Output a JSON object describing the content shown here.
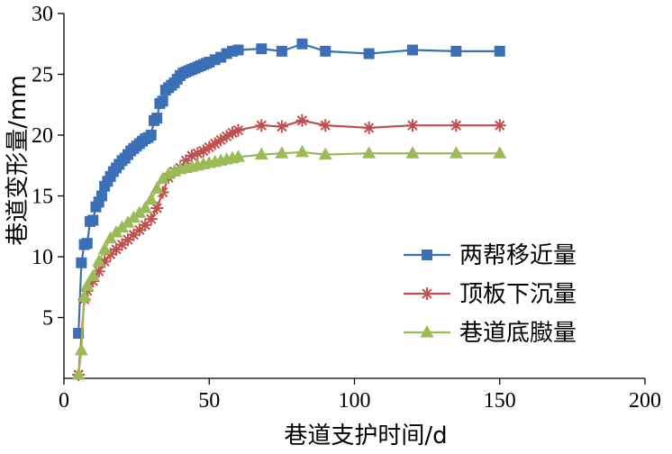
{
  "chart_data": {
    "type": "line",
    "xlabel": "巷道支护时间/d",
    "ylabel": "巷道变形量/mm",
    "xlim": [
      0,
      200
    ],
    "ylim": [
      0,
      30
    ],
    "xticks": [
      0,
      50,
      100,
      150,
      200
    ],
    "yticks": [
      5,
      10,
      15,
      20,
      25,
      30
    ],
    "ytick_labels": [
      "5",
      "10",
      "15",
      "20",
      "25",
      "30"
    ],
    "grid": false,
    "legend_position": "lower-right",
    "series": [
      {
        "name": "两帮移近量",
        "color": "#3b6fb6",
        "marker": "square",
        "x": [
          5,
          6,
          7,
          8,
          9,
          10,
          11,
          12,
          13,
          14,
          15,
          16,
          17,
          18,
          19,
          20,
          21,
          22,
          23,
          24,
          25,
          26,
          27,
          28,
          29,
          30,
          31,
          32,
          33,
          34,
          35,
          36,
          37,
          38,
          39,
          40,
          41,
          42,
          43,
          44,
          45,
          46,
          47,
          48,
          49,
          50,
          52,
          54,
          56,
          58,
          60,
          68,
          75,
          82,
          90,
          105,
          120,
          135,
          150
        ],
        "y": [
          3.7,
          9.5,
          11.0,
          11.1,
          12.9,
          13.0,
          14.1,
          14.5,
          15.0,
          15.8,
          16.2,
          16.6,
          17.0,
          17.3,
          17.6,
          17.9,
          18.1,
          18.4,
          18.7,
          18.9,
          19.1,
          19.3,
          19.5,
          19.7,
          19.8,
          20.0,
          21.2,
          21.4,
          22.6,
          22.8,
          23.7,
          23.9,
          24.1,
          24.3,
          24.6,
          24.9,
          25.1,
          25.2,
          25.3,
          25.4,
          25.5,
          25.6,
          25.7,
          25.8,
          25.9,
          26.0,
          26.2,
          26.4,
          26.7,
          26.9,
          27.0,
          27.1,
          26.9,
          27.5,
          26.9,
          26.7,
          27.0,
          26.9,
          26.9
        ]
      },
      {
        "name": "顶板下沉量",
        "color": "#c0504d",
        "marker": "star",
        "x": [
          5,
          7,
          8,
          10,
          12,
          14,
          16,
          18,
          20,
          22,
          24,
          26,
          28,
          30,
          32,
          34,
          36,
          38,
          40,
          42,
          44,
          46,
          48,
          50,
          52,
          54,
          56,
          58,
          60,
          68,
          75,
          82,
          90,
          105,
          120,
          135,
          150
        ],
        "y": [
          0.3,
          6.5,
          7.2,
          8.0,
          8.8,
          9.6,
          10.2,
          10.6,
          11.0,
          11.4,
          11.8,
          12.2,
          12.6,
          13.1,
          14.0,
          15.3,
          16.5,
          17.0,
          17.3,
          17.9,
          18.3,
          18.5,
          18.7,
          19.0,
          19.3,
          19.6,
          19.9,
          20.2,
          20.4,
          20.8,
          20.7,
          21.2,
          20.8,
          20.6,
          20.8,
          20.8,
          20.8
        ]
      },
      {
        "name": "巷道底臌量",
        "color": "#9bbb59",
        "marker": "triangle",
        "x": [
          5,
          6,
          7,
          8,
          10,
          12,
          14,
          16,
          18,
          20,
          22,
          24,
          26,
          28,
          30,
          32,
          34,
          36,
          38,
          40,
          42,
          44,
          46,
          48,
          50,
          52,
          54,
          56,
          58,
          60,
          68,
          75,
          82,
          90,
          105,
          120,
          135,
          150
        ],
        "y": [
          0.3,
          2.3,
          6.7,
          7.6,
          8.4,
          9.6,
          10.6,
          11.5,
          12.0,
          12.4,
          12.8,
          13.2,
          13.6,
          14.0,
          14.7,
          15.6,
          16.4,
          16.8,
          17.0,
          17.2,
          17.3,
          17.4,
          17.5,
          17.6,
          17.7,
          17.8,
          17.9,
          18.0,
          18.1,
          18.2,
          18.4,
          18.5,
          18.6,
          18.4,
          18.5,
          18.5,
          18.5,
          18.5
        ]
      }
    ]
  }
}
